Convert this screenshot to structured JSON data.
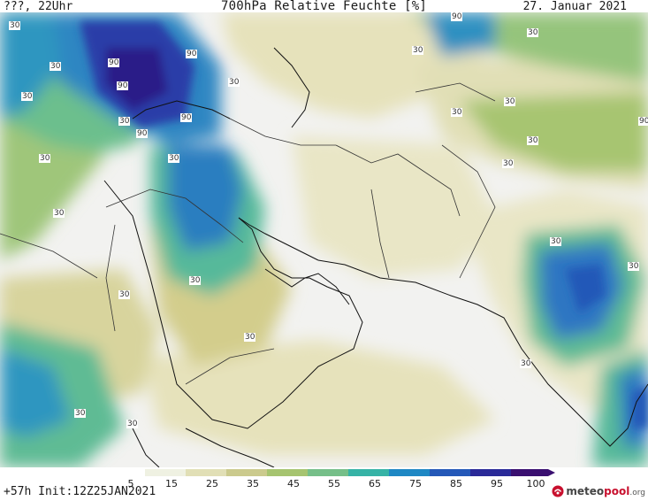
{
  "header": {
    "left": "???, 22Uhr",
    "title": "700hPa Relative Feuchte [%]",
    "date": "27. Januar 2021"
  },
  "footer": {
    "init": "+57h Init:12Z25JAN2021"
  },
  "logo": {
    "brand_dark": "meteo",
    "brand_red": "pool",
    "tld": ".org",
    "icon": "meteopool-logo-icon"
  },
  "legend": {
    "ticks": [
      "5",
      "15",
      "25",
      "35",
      "45",
      "55",
      "65",
      "75",
      "85",
      "95",
      "100"
    ],
    "colors": [
      "#ffffff",
      "#eff1e2",
      "#e1dfb6",
      "#cbca8d",
      "#a6c470",
      "#76bf89",
      "#36b3a6",
      "#1f88c4",
      "#2458b8",
      "#2a2a98",
      "#3a0f70"
    ]
  },
  "contour_labels": [
    "30",
    "30",
    "30",
    "30",
    "30",
    "30",
    "30",
    "30",
    "30",
    "30",
    "30",
    "30",
    "30",
    "30",
    "30",
    "30",
    "30",
    "30",
    "30",
    "30",
    "30",
    "30",
    "90",
    "90",
    "90",
    "90",
    "90",
    "90",
    "90"
  ]
}
